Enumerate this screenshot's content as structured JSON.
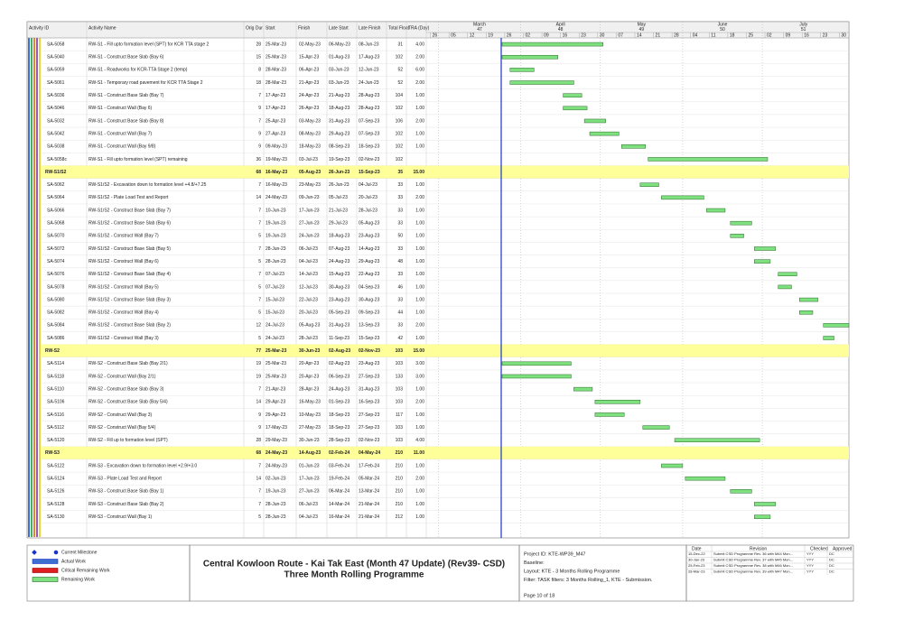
{
  "table": {
    "columns": [
      "Activity ID",
      "Activity Name",
      "Orig Dur",
      "Start",
      "Finish",
      "Late Start",
      "Late Finish",
      "Total Float",
      "TRA (Day)"
    ],
    "rows": [
      {
        "cells": [
          "SA-5058",
          "RW-S1 - Fill upto formation level (SPT) for KCR TTA stage 2",
          28,
          "25-Mar-23",
          "02-May-23",
          "06-May-23",
          "08-Jun-23",
          31,
          "4.00"
        ]
      },
      {
        "cells": [
          "SA-5040",
          "RW-S1 - Construct Base Slab (Bay 6)",
          15,
          "25-Mar-23",
          "15-Apr-23",
          "01-Aug-23",
          "17-Aug-23",
          102,
          "2.00"
        ]
      },
      {
        "cells": [
          "SA-5059",
          "RW-S1 - Roadworks for KCR-TTA Stage 2 (temp)",
          8,
          "28-Mar-23",
          "06-Apr-23",
          "03-Jun-23",
          "12-Jun-23",
          52,
          "6.00"
        ]
      },
      {
        "cells": [
          "SA-5061",
          "RW-S1 - Temporary road pavement for KCR TTA Stage 2",
          18,
          "28-Mar-23",
          "21-Apr-23",
          "03-Jun-23",
          "24-Jun-23",
          52,
          "2.00"
        ]
      },
      {
        "cells": [
          "SA-5036",
          "RW-S1 - Construct Base Slab (Bay 7)",
          7,
          "17-Apr-23",
          "24-Apr-23",
          "21-Aug-23",
          "28-Aug-23",
          104,
          "1.00"
        ]
      },
      {
        "cells": [
          "SA-5046",
          "RW-S1 - Construct Wall (Bay 6)",
          9,
          "17-Apr-23",
          "26-Apr-23",
          "18-Aug-23",
          "28-Aug-23",
          102,
          "1.00"
        ]
      },
      {
        "cells": [
          "SA-5032",
          "RW-S1 - Construct Base Slab (Bay 8)",
          7,
          "25-Apr-23",
          "03-May-23",
          "31-Aug-23",
          "07-Sep-23",
          106,
          "2.00"
        ]
      },
      {
        "cells": [
          "SA-5042",
          "RW-S1 - Construct Wall (Bay 7)",
          9,
          "27-Apr-23",
          "08-May-23",
          "29-Aug-23",
          "07-Sep-23",
          102,
          "1.00"
        ]
      },
      {
        "cells": [
          "SA-5038",
          "RW-S1 - Construct Wall (Bay 9/8)",
          9,
          "09-May-23",
          "18-May-23",
          "08-Sep-23",
          "18-Sep-23",
          102,
          "1.00"
        ]
      },
      {
        "cells": [
          "SA-5058c",
          "RW-S1 - Fill upto formation level (SPT) remaining",
          36,
          "19-May-23",
          "03-Jul-23",
          "19-Sep-23",
          "02-Nov-23",
          102,
          null
        ]
      },
      {
        "group": "RW-S1/S2",
        "cells": [
          null,
          null,
          68,
          "16-May-23",
          "05-Aug-23",
          "26-Jun-23",
          "15-Sep-23",
          35,
          "15.00"
        ]
      },
      {
        "cells": [
          "SA-5062",
          "RW-S1/S2 - Excavation down to formation level +4.8/+7.25",
          7,
          "16-May-23",
          "23-May-23",
          "26-Jun-23",
          "04-Jul-23",
          33,
          "1.00"
        ]
      },
      {
        "cells": [
          "SA-5064",
          "RW-S1/S2 - Plate Load Test and Report",
          14,
          "24-May-23",
          "09-Jun-23",
          "05-Jul-23",
          "20-Jul-23",
          33,
          "2.00"
        ]
      },
      {
        "cells": [
          "SA-5066",
          "RW-S1/S2 - Construct Base Slab (Bay 7)",
          7,
          "10-Jun-23",
          "17-Jun-23",
          "21-Jul-23",
          "28-Jul-23",
          33,
          "1.00"
        ]
      },
      {
        "cells": [
          "SA-5068",
          "RW-S1/S2 - Construct Base Slab (Bay 6)",
          7,
          "19-Jun-23",
          "27-Jun-23",
          "29-Jul-23",
          "05-Aug-23",
          33,
          "1.00"
        ]
      },
      {
        "cells": [
          "SA-5070",
          "RW-S1/S2 - Construct Wall (Bay 7)",
          5,
          "19-Jun-23",
          "24-Jun-23",
          "18-Aug-23",
          "23-Aug-23",
          50,
          "1.00"
        ]
      },
      {
        "cells": [
          "SA-5072",
          "RW-S1/S2 - Construct Base Slab (Bay 5)",
          7,
          "28-Jun-23",
          "06-Jul-23",
          "07-Aug-23",
          "14-Aug-23",
          33,
          "1.00"
        ]
      },
      {
        "cells": [
          "SA-5074",
          "RW-S1/S2 - Construct Wall (Bay 6)",
          5,
          "28-Jun-23",
          "04-Jul-23",
          "24-Aug-23",
          "29-Aug-23",
          48,
          "1.00"
        ]
      },
      {
        "cells": [
          "SA-5076",
          "RW-S1/S2 - Construct Base Slab (Bay 4)",
          7,
          "07-Jul-23",
          "14-Jul-23",
          "15-Aug-23",
          "22-Aug-23",
          33,
          "1.00"
        ]
      },
      {
        "cells": [
          "SA-5078",
          "RW-S1/S2 - Construct Wall (Bay 5)",
          5,
          "07-Jul-23",
          "12-Jul-23",
          "30-Aug-23",
          "04-Sep-23",
          46,
          "1.00"
        ]
      },
      {
        "cells": [
          "SA-5080",
          "RW-S1/S2 - Construct Base Slab (Bay 3)",
          7,
          "15-Jul-23",
          "22-Jul-23",
          "23-Aug-23",
          "30-Aug-23",
          33,
          "1.00"
        ]
      },
      {
        "cells": [
          "SA-5082",
          "RW-S1/S2 - Construct Wall (Bay 4)",
          5,
          "15-Jul-23",
          "20-Jul-23",
          "05-Sep-23",
          "09-Sep-23",
          44,
          "1.00"
        ]
      },
      {
        "cells": [
          "SA-5084",
          "RW-S1/S2 - Construct Base Slab (Bay 2)",
          12,
          "24-Jul-23",
          "05-Aug-23",
          "31-Aug-23",
          "13-Sep-23",
          33,
          "2.00"
        ]
      },
      {
        "cells": [
          "SA-5086",
          "RW-S1/S2 - Construct Wall (Bay 3)",
          5,
          "24-Jul-23",
          "28-Jul-23",
          "11-Sep-23",
          "15-Sep-23",
          42,
          "1.00"
        ]
      },
      {
        "group": "RW-S2",
        "cells": [
          null,
          null,
          77,
          "25-Mar-23",
          "30-Jun-23",
          "02-Aug-23",
          "02-Nov-23",
          103,
          "15.00"
        ]
      },
      {
        "cells": [
          "SA-5114",
          "RW-S2 - Construct Base Slab (Bay 2/1)",
          19,
          "25-Mar-23",
          "20-Apr-23",
          "02-Aug-23",
          "23-Aug-23",
          103,
          "3.00"
        ]
      },
      {
        "cells": [
          "SA-5118",
          "RW-S2 - Construct Wall (Bay 2/1)",
          19,
          "25-Mar-23",
          "20-Apr-23",
          "06-Sep-23",
          "27-Sep-23",
          133,
          "3.00"
        ]
      },
      {
        "cells": [
          "SA-5110",
          "RW-S2 - Construct Base Slab (Bay 3)",
          7,
          "21-Apr-23",
          "28-Apr-23",
          "24-Aug-23",
          "31-Aug-23",
          103,
          "1.00"
        ]
      },
      {
        "cells": [
          "SA-5106",
          "RW-S2 - Construct Base Slab (Bay 5/4)",
          14,
          "29-Apr-23",
          "16-May-23",
          "01-Sep-23",
          "16-Sep-23",
          103,
          "2.00"
        ]
      },
      {
        "cells": [
          "SA-5116",
          "RW-S2 - Construct Wall (Bay 3)",
          9,
          "29-Apr-23",
          "10-May-23",
          "18-Sep-23",
          "27-Sep-23",
          117,
          "1.00"
        ]
      },
      {
        "cells": [
          "SA-5112",
          "RW-S2 - Construct Wall (Bay 5/4)",
          9,
          "17-May-23",
          "27-May-23",
          "18-Sep-23",
          "27-Sep-23",
          103,
          "1.00"
        ]
      },
      {
        "cells": [
          "SA-5120",
          "RW-S2 - Fill up to formation level (SPT)",
          28,
          "29-May-23",
          "30-Jun-23",
          "28-Sep-23",
          "02-Nov-23",
          103,
          "4.00"
        ]
      },
      {
        "group": "RW-S3",
        "cells": [
          null,
          null,
          68,
          "24-May-23",
          "14-Aug-23",
          "02-Feb-24",
          "04-May-24",
          210,
          "11.00"
        ]
      },
      {
        "cells": [
          "SA-5122",
          "RW-S3 - Excavation down to formation level +2.9/+3.0",
          7,
          "24-May-23",
          "01-Jun-23",
          "03-Feb-24",
          "17-Feb-24",
          210,
          "1.00"
        ]
      },
      {
        "cells": [
          "SA-5124",
          "RW-S3 - Plate Load Test and Report",
          14,
          "02-Jun-23",
          "17-Jun-23",
          "19-Feb-24",
          "05-Mar-24",
          210,
          "2.00"
        ]
      },
      {
        "cells": [
          "SA-5126",
          "RW-S3 - Construct Base Slab (Bay 1)",
          7,
          "19-Jun-23",
          "27-Jun-23",
          "06-Mar-24",
          "13-Mar-24",
          210,
          "1.00"
        ]
      },
      {
        "cells": [
          "SA-5128",
          "RW-S3 - Construct Base Slab (Bay 2)",
          7,
          "28-Jun-23",
          "06-Jul-23",
          "14-Mar-24",
          "21-Mar-24",
          210,
          "1.00"
        ]
      },
      {
        "cells": [
          "SA-5130",
          "RW-S3 - Construct Wall (Bay 1)",
          5,
          "28-Jun-23",
          "04-Jul-23",
          "16-Mar-24",
          "21-Mar-24",
          212,
          "1.00"
        ]
      }
    ]
  },
  "timeline": {
    "months": [
      {
        "name": "March",
        "number": "47"
      },
      {
        "name": "April",
        "number": "48"
      },
      {
        "name": "May",
        "number": "49"
      },
      {
        "name": "June",
        "number": "50"
      },
      {
        "name": "July",
        "number": "51"
      }
    ],
    "weeks": [
      "26",
      "05",
      "12",
      "19",
      "26",
      "02",
      "09",
      "16",
      "23",
      "30",
      "07",
      "14",
      "21",
      "28",
      "04",
      "11",
      "18",
      "25",
      "02",
      "09",
      "16",
      "23",
      "30"
    ]
  },
  "legend": [
    "Current Milestone",
    "Actual Work",
    "Critical Remaining Work",
    "Remaining Work"
  ],
  "footer": {
    "title": "Central Kowloon Route - Kai Tak East (Month 47 Update) (Rev39- CSD)",
    "subtitle": "Three Month Rolling Programme",
    "project": [
      "Project ID: KTE-WP39_M47",
      "Baseline:",
      "Layout: KTE - 3 Months Rolling Programme",
      "Filter: TASK filters: 3 Months Rolling_1, KTE - Submission."
    ],
    "page": "Page 10 of 18",
    "revisions": {
      "columns": [
        "Date",
        "Revision",
        "Checked",
        "Approved"
      ],
      "rows": [
        [
          "15-Dec-22",
          "Submit CSD Programme Rev. 36 with M44 Mon...",
          "YYY",
          "DC"
        ],
        [
          "30-Jan-23",
          "Submit CSD Programme Rev. 37 with M45 Mon...",
          "YYY",
          "DC"
        ],
        [
          "25-Feb-23",
          "Submit CSD Programme Rev. 38 with M46 Mon...",
          "YYY",
          "DC"
        ],
        [
          "28-Mar-23",
          "Submit CSD Programme Rev. 39 with M47 Mon...",
          "YYY",
          "DC"
        ]
      ]
    }
  }
}
